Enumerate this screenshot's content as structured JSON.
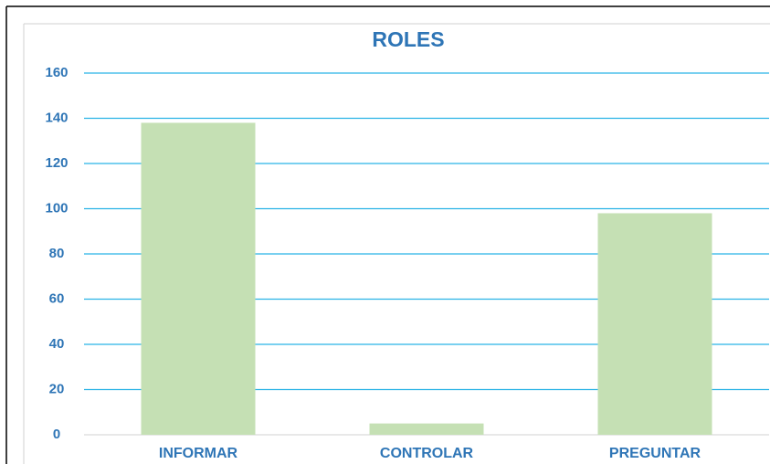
{
  "chart_data": {
    "type": "bar",
    "title": "ROLES",
    "categories": [
      "INFORMAR",
      "CONTROLAR",
      "PREGUNTAR"
    ],
    "values": [
      138,
      5,
      98
    ],
    "color": "#c5e0b4",
    "ylim": [
      0,
      160
    ],
    "yticks": [
      0,
      20,
      40,
      60,
      80,
      100,
      120,
      140,
      160
    ],
    "grid": true,
    "grid_color": "#29b3e6"
  }
}
